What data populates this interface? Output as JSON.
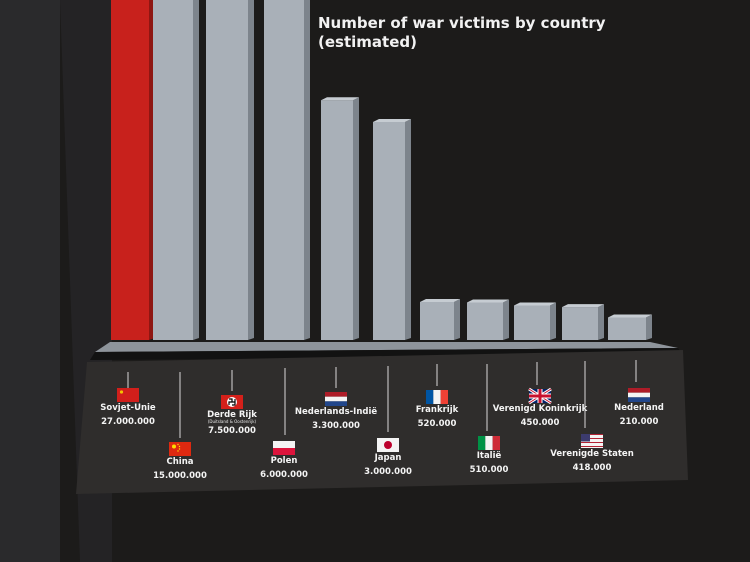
{
  "chart_data": {
    "type": "bar",
    "title": "Number of war victims by country (estimated)",
    "title_lines": [
      "Number of war victims by country",
      "(estimated)"
    ],
    "categories": [
      "Sovjet-Unie",
      "China",
      "Derde Rijk",
      "Polen",
      "Nederlands-Indië",
      "Japan",
      "Frankrijk",
      "Italië",
      "Verenigd Koninkrijk",
      "Verenigde Staten",
      "Nederland"
    ],
    "notes": {
      "Derde Rijk": "(Duitsland & Oostenrijk)"
    },
    "value_labels": [
      "27.000.000",
      "15.000.000",
      "7.500.000",
      "6.000.000",
      "3.300.000",
      "3.000.000",
      "520.000",
      "510.000",
      "450.000",
      "418.000",
      "210.000"
    ],
    "values": [
      27000000,
      15000000,
      7500000,
      6000000,
      3300000,
      3000000,
      520000,
      510000,
      450000,
      418000,
      210000
    ],
    "flags": [
      "ussr",
      "china",
      "reich",
      "poland",
      "netherlands",
      "japan",
      "france",
      "italy",
      "uk",
      "usa",
      "netherlands"
    ],
    "colors": {
      "highlight": "#c8211c",
      "bar": "#a9b0b8",
      "background": "#1c1b1a",
      "panel": "#2f2d2c",
      "text": "#f4f4f4"
    }
  }
}
